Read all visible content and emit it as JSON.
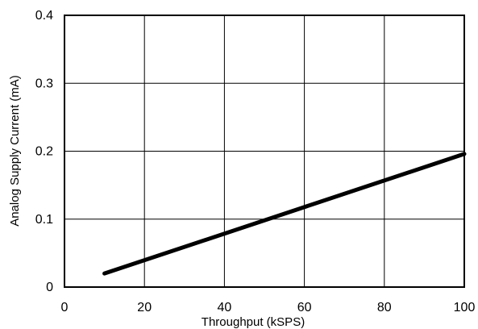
{
  "chart_data": {
    "type": "line",
    "title": "",
    "xlabel": "Throughput (kSPS)",
    "ylabel": "Analog Supply Current (mA)",
    "xlim": [
      0,
      100
    ],
    "ylim": [
      0,
      0.4
    ],
    "xticks": [
      0,
      20,
      40,
      60,
      80,
      100
    ],
    "yticks": [
      0,
      0.1,
      0.2,
      0.3,
      0.4
    ],
    "xtick_labels": [
      "0",
      "20",
      "40",
      "60",
      "80",
      "100"
    ],
    "ytick_labels": [
      "0",
      "0.1",
      "0.2",
      "0.3",
      "0.4"
    ],
    "grid": true,
    "series": [
      {
        "x": [
          10,
          100
        ],
        "y": [
          0.02,
          0.196
        ]
      }
    ],
    "colors": {
      "line": "#000000",
      "grid": "#000000",
      "frame": "#000000",
      "background": "#ffffff"
    }
  }
}
